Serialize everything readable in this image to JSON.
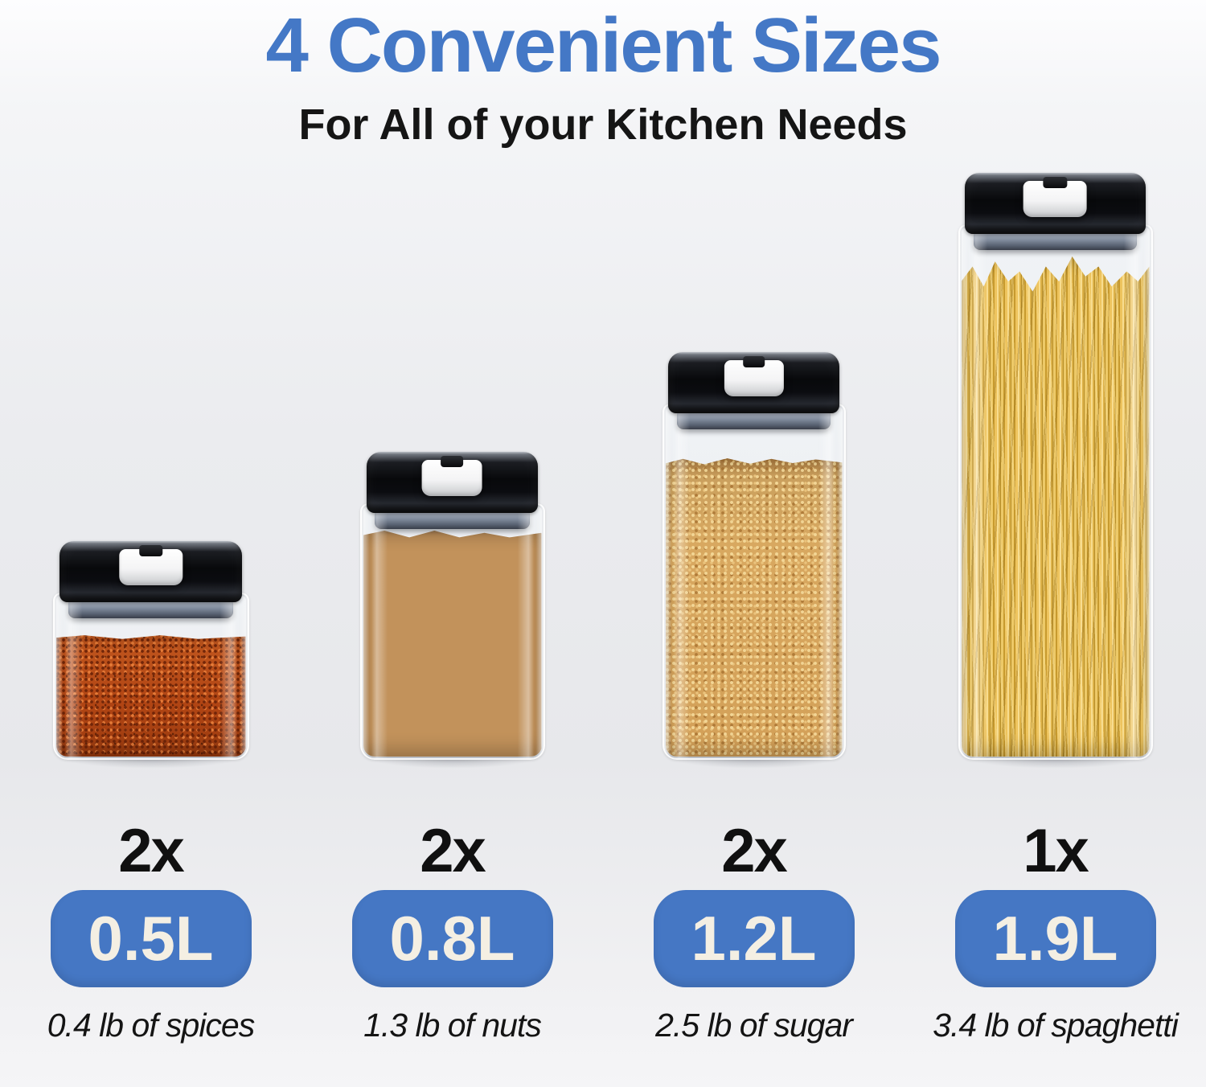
{
  "header": {
    "title": "4 Convenient Sizes",
    "subtitle": "For All of your Kitchen Needs"
  },
  "colors": {
    "title_blue": "#4478C6",
    "badge_blue": "#4577C4",
    "badge_text_cream": "#F4EFE3",
    "text_dark": "#141414",
    "lid_black": "#0b0c10",
    "latch_white": "#ffffff",
    "seal_gray": "#7c8798",
    "spices_orange": "#b64a1b",
    "nuts_brown": "#c2925b",
    "sugar_tan": "#d3a05c",
    "spaghetti_yellow": "#eec45e"
  },
  "products": [
    {
      "id": "spices",
      "count_label": "2x",
      "size_label": "0.5L",
      "caption": "0.4 lb of spices",
      "content": "ground spices"
    },
    {
      "id": "nuts",
      "count_label": "2x",
      "size_label": "0.8L",
      "caption": "1.3 lb of nuts",
      "content": "mixed nuts"
    },
    {
      "id": "sugar",
      "count_label": "2x",
      "size_label": "1.2L",
      "caption": "2.5 lb of sugar",
      "content": "brown sugar"
    },
    {
      "id": "spaghetti",
      "count_label": "1x",
      "size_label": "1.9L",
      "caption": "3.4 lb of spaghetti",
      "content": "spaghetti"
    }
  ]
}
